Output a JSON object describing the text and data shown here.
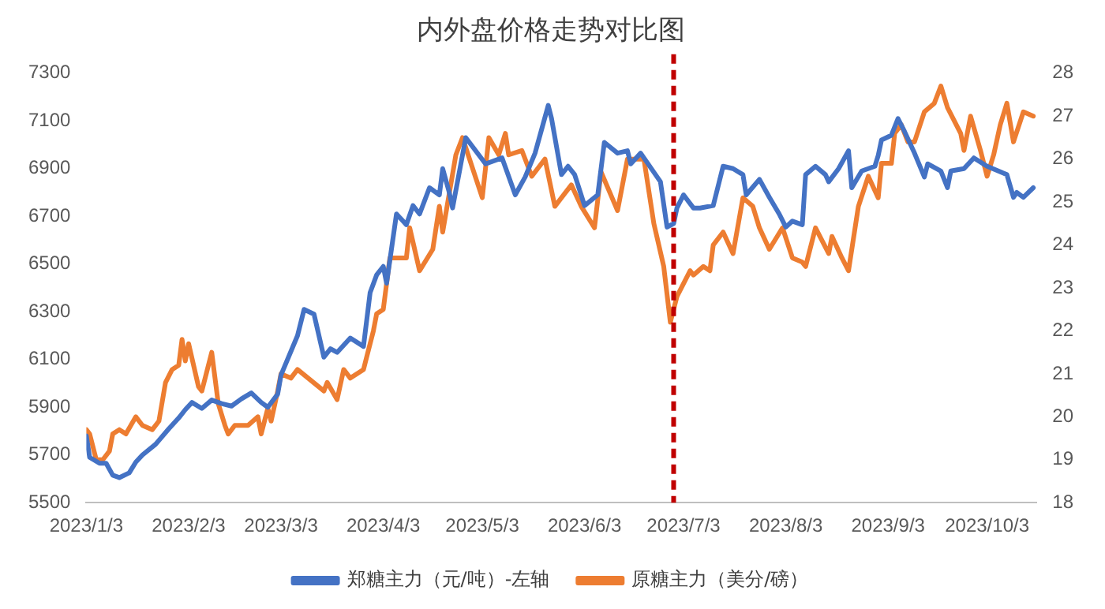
{
  "chart_data": {
    "type": "line",
    "title": "内外盘价格走势对比图",
    "legend": "bottom",
    "marker": "none",
    "line_style": "solid",
    "grid": false,
    "xlim": [
      "2023-01-03",
      "2023-10-18"
    ],
    "xticks": [
      {
        "value": "2023-01-03",
        "label": "2023/1/3"
      },
      {
        "value": "2023-02-03",
        "label": "2023/2/3"
      },
      {
        "value": "2023-03-03",
        "label": "2023/3/3"
      },
      {
        "value": "2023-04-03",
        "label": "2023/4/3"
      },
      {
        "value": "2023-05-03",
        "label": "2023/5/3"
      },
      {
        "value": "2023-06-03",
        "label": "2023/6/3"
      },
      {
        "value": "2023-07-03",
        "label": "2023/7/3"
      },
      {
        "value": "2023-08-03",
        "label": "2023/8/3"
      },
      {
        "value": "2023-09-03",
        "label": "2023/9/3"
      },
      {
        "value": "2023-10-03",
        "label": "2023/10/3"
      }
    ],
    "ylim": [
      5500,
      7300
    ],
    "yticks": [
      5500,
      5700,
      5900,
      6100,
      6300,
      6500,
      6700,
      6900,
      7100,
      7300
    ],
    "y2lim": [
      18,
      28
    ],
    "y2ticks": [
      18,
      19,
      20,
      21,
      22,
      23,
      24,
      25,
      26,
      27,
      28
    ],
    "ref_lines": [
      {
        "axis": "x",
        "value": "2023-06-30",
        "color": "#c00000",
        "line_style": "dashed"
      }
    ],
    "series": [
      {
        "name": "郑糖主力（元/吨）-左轴",
        "color": "#4472c4",
        "x": [
          "2023-01-03",
          "2023-01-04",
          "2023-01-07",
          "2023-01-09",
          "2023-01-11",
          "2023-01-13",
          "2023-01-16",
          "2023-01-18",
          "2023-01-20",
          "2023-01-24",
          "2023-01-28",
          "2023-01-31",
          "2023-02-02",
          "2023-02-04",
          "2023-02-07",
          "2023-02-10",
          "2023-02-13",
          "2023-02-16",
          "2023-02-19",
          "2023-02-22",
          "2023-02-25",
          "2023-02-27",
          "2023-03-02",
          "2023-03-03",
          "2023-03-08",
          "2023-03-10",
          "2023-03-13",
          "2023-03-16",
          "2023-03-18",
          "2023-03-20",
          "2023-03-24",
          "2023-03-28",
          "2023-03-30",
          "2023-04-01",
          "2023-04-03",
          "2023-04-04",
          "2023-04-07",
          "2023-04-10",
          "2023-04-12",
          "2023-04-14",
          "2023-04-17",
          "2023-04-20",
          "2023-04-21",
          "2023-04-23",
          "2023-04-24",
          "2023-04-28",
          "2023-05-04",
          "2023-05-09",
          "2023-05-13",
          "2023-05-16",
          "2023-05-19",
          "2023-05-23",
          "2023-05-24",
          "2023-05-27",
          "2023-05-29",
          "2023-05-31",
          "2023-06-03",
          "2023-06-07",
          "2023-06-09",
          "2023-06-13",
          "2023-06-16",
          "2023-06-17",
          "2023-06-20",
          "2023-06-26",
          "2023-06-28",
          "2023-06-30",
          "2023-07-01",
          "2023-07-03",
          "2023-07-06",
          "2023-07-08",
          "2023-07-12",
          "2023-07-15",
          "2023-07-18",
          "2023-07-21",
          "2023-07-22",
          "2023-07-26",
          "2023-07-29",
          "2023-08-01",
          "2023-08-03",
          "2023-08-05",
          "2023-08-08",
          "2023-08-09",
          "2023-08-12",
          "2023-08-15",
          "2023-08-16",
          "2023-08-19",
          "2023-08-22",
          "2023-08-23",
          "2023-08-26",
          "2023-08-30",
          "2023-08-31",
          "2023-09-01",
          "2023-09-04",
          "2023-09-06",
          "2023-09-08",
          "2023-09-11",
          "2023-09-14",
          "2023-09-15",
          "2023-09-19",
          "2023-09-21",
          "2023-09-22",
          "2023-09-26",
          "2023-09-29",
          "2023-10-03",
          "2023-10-09",
          "2023-10-11",
          "2023-10-12",
          "2023-10-14",
          "2023-10-17"
        ],
        "values": [
          5780,
          5690,
          5665,
          5665,
          5615,
          5605,
          5625,
          5670,
          5700,
          5745,
          5810,
          5855,
          5890,
          5920,
          5895,
          5930,
          5915,
          5905,
          5935,
          5960,
          5920,
          5900,
          5955,
          6035,
          6200,
          6310,
          6290,
          6110,
          6145,
          6130,
          6190,
          6155,
          6380,
          6455,
          6490,
          6420,
          6710,
          6665,
          6745,
          6710,
          6820,
          6790,
          6900,
          6800,
          6735,
          7030,
          6920,
          6945,
          6790,
          6865,
          6965,
          7165,
          7110,
          6875,
          6910,
          6875,
          6745,
          6790,
          7010,
          6965,
          6975,
          6920,
          6965,
          6845,
          6655,
          6670,
          6735,
          6790,
          6735,
          6735,
          6745,
          6910,
          6900,
          6875,
          6790,
          6855,
          6780,
          6710,
          6655,
          6680,
          6665,
          6875,
          6910,
          6875,
          6845,
          6900,
          6975,
          6820,
          6890,
          6910,
          6955,
          7020,
          7040,
          7110,
          7055,
          6965,
          6865,
          6920,
          6890,
          6820,
          6890,
          6900,
          6945,
          6910,
          6875,
          6780,
          6800,
          6780,
          6820
        ]
      },
      {
        "name": "原糖主力（美分/磅）",
        "color": "#ed7d31",
        "axis": "y2",
        "x": [
          "2023-01-03",
          "2023-01-04",
          "2023-01-06",
          "2023-01-08",
          "2023-01-10",
          "2023-01-11",
          "2023-01-13",
          "2023-01-15",
          "2023-01-18",
          "2023-01-20",
          "2023-01-23",
          "2023-01-25",
          "2023-01-27",
          "2023-01-29",
          "2023-01-31",
          "2023-02-01",
          "2023-02-02",
          "2023-02-03",
          "2023-02-06",
          "2023-02-07",
          "2023-02-10",
          "2023-02-12",
          "2023-02-14",
          "2023-02-15",
          "2023-02-17",
          "2023-02-21",
          "2023-02-24",
          "2023-02-25",
          "2023-02-27",
          "2023-02-28",
          "2023-03-02",
          "2023-03-03",
          "2023-03-06",
          "2023-03-08",
          "2023-03-16",
          "2023-03-17",
          "2023-03-20",
          "2023-03-22",
          "2023-03-24",
          "2023-03-28",
          "2023-03-29",
          "2023-03-31",
          "2023-04-01",
          "2023-04-03",
          "2023-04-05",
          "2023-04-10",
          "2023-04-11",
          "2023-04-14",
          "2023-04-18",
          "2023-04-20",
          "2023-04-21",
          "2023-04-25",
          "2023-04-27",
          "2023-05-03",
          "2023-05-05",
          "2023-05-08",
          "2023-05-10",
          "2023-05-11",
          "2023-05-15",
          "2023-05-18",
          "2023-05-22",
          "2023-05-25",
          "2023-05-30",
          "2023-06-02",
          "2023-06-06",
          "2023-06-08",
          "2023-06-13",
          "2023-06-16",
          "2023-06-21",
          "2023-06-24",
          "2023-06-27",
          "2023-06-29",
          "2023-07-01",
          "2023-07-05",
          "2023-07-06",
          "2023-07-09",
          "2023-07-11",
          "2023-07-12",
          "2023-07-15",
          "2023-07-18",
          "2023-07-21",
          "2023-07-24",
          "2023-07-26",
          "2023-07-29",
          "2023-08-02",
          "2023-08-05",
          "2023-08-08",
          "2023-08-09",
          "2023-08-12",
          "2023-08-16",
          "2023-08-17",
          "2023-08-20",
          "2023-08-22",
          "2023-08-25",
          "2023-08-28",
          "2023-08-31",
          "2023-09-01",
          "2023-09-04",
          "2023-09-05",
          "2023-09-07",
          "2023-09-09",
          "2023-09-11",
          "2023-09-14",
          "2023-09-17",
          "2023-09-19",
          "2023-09-21",
          "2023-09-25",
          "2023-09-26",
          "2023-09-28",
          "2023-10-01",
          "2023-10-03",
          "2023-10-05",
          "2023-10-07",
          "2023-10-09",
          "2023-10-11",
          "2023-10-14",
          "2023-10-17"
        ],
        "values": [
          19.7,
          19.6,
          19.0,
          19.0,
          19.2,
          19.6,
          19.7,
          19.6,
          20.0,
          19.8,
          19.7,
          19.9,
          20.8,
          21.1,
          21.2,
          21.8,
          21.3,
          21.7,
          20.7,
          20.6,
          21.5,
          20.3,
          19.8,
          19.6,
          19.8,
          19.8,
          20.0,
          19.6,
          20.2,
          19.9,
          20.6,
          21.0,
          20.9,
          21.1,
          20.6,
          20.8,
          20.4,
          21.1,
          20.9,
          21.1,
          21.4,
          22.0,
          22.4,
          22.5,
          23.7,
          23.7,
          24.4,
          23.4,
          23.9,
          24.9,
          24.3,
          26.1,
          26.5,
          25.1,
          26.5,
          26.1,
          26.6,
          26.1,
          26.2,
          25.6,
          26.0,
          24.9,
          25.4,
          24.9,
          24.4,
          25.7,
          24.8,
          26.0,
          26.0,
          24.5,
          23.5,
          22.2,
          22.8,
          23.4,
          23.3,
          23.5,
          23.4,
          24.0,
          24.3,
          23.8,
          25.1,
          24.9,
          24.4,
          23.9,
          24.4,
          23.7,
          23.6,
          23.5,
          24.4,
          23.8,
          24.2,
          23.7,
          23.4,
          24.9,
          25.6,
          25.1,
          25.9,
          25.9,
          26.6,
          26.8,
          26.4,
          26.4,
          27.1,
          27.3,
          27.7,
          27.2,
          26.6,
          26.2,
          27.0,
          26.2,
          25.6,
          26.1,
          26.8,
          27.3,
          26.4,
          27.1,
          27.0
        ]
      }
    ]
  }
}
